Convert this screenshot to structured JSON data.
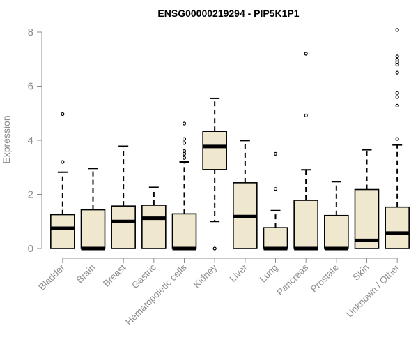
{
  "chart_data": {
    "type": "boxplot",
    "title": "ENSG00000219294 - PIP5K1P1",
    "ylabel": "Expression",
    "ylim": [
      0,
      8.3
    ],
    "yticks": [
      0,
      2,
      4,
      6,
      8
    ],
    "grid": false,
    "colors": {
      "box_fill": "#efe8cf",
      "stroke": "#000000",
      "text": "#8c8c8c"
    },
    "categories": [
      "Bladder",
      "Brain",
      "Breast",
      "Gastric",
      "Hematopoietic cells",
      "Kidney",
      "Liver",
      "Lung",
      "Pancreas",
      "Prostate",
      "Skin",
      "Unknown / Other"
    ],
    "boxes": [
      {
        "q1": 0.0,
        "median": 0.75,
        "q3": 1.25,
        "whisker_low": 0.0,
        "whisker_high": 2.82,
        "outliers": [
          3.2,
          4.97
        ]
      },
      {
        "q1": 0.0,
        "median": 0.0,
        "q3": 1.43,
        "whisker_low": 0.0,
        "whisker_high": 2.96,
        "outliers": []
      },
      {
        "q1": 0.0,
        "median": 1.0,
        "q3": 1.57,
        "whisker_low": 0.0,
        "whisker_high": 3.78,
        "outliers": []
      },
      {
        "q1": 0.0,
        "median": 1.12,
        "q3": 1.6,
        "whisker_low": 0.0,
        "whisker_high": 2.26,
        "outliers": []
      },
      {
        "q1": 0.0,
        "median": 0.0,
        "q3": 1.28,
        "whisker_low": 0.0,
        "whisker_high": 3.2,
        "outliers": [
          3.35,
          3.5,
          3.6,
          3.9,
          4.05,
          4.62
        ]
      },
      {
        "q1": 2.92,
        "median": 3.77,
        "q3": 4.33,
        "whisker_low": 1.0,
        "whisker_high": 5.55,
        "outliers": [
          0.0
        ]
      },
      {
        "q1": 0.0,
        "median": 1.18,
        "q3": 2.43,
        "whisker_low": 0.0,
        "whisker_high": 3.99,
        "outliers": []
      },
      {
        "q1": 0.0,
        "median": 0.0,
        "q3": 0.77,
        "whisker_low": 0.0,
        "whisker_high": 1.4,
        "outliers": [
          2.2,
          3.5
        ]
      },
      {
        "q1": 0.0,
        "median": 0.0,
        "q3": 1.78,
        "whisker_low": 0.0,
        "whisker_high": 2.91,
        "outliers": [
          4.92,
          7.2
        ]
      },
      {
        "q1": 0.0,
        "median": 0.0,
        "q3": 1.22,
        "whisker_low": 0.0,
        "whisker_high": 2.47,
        "outliers": []
      },
      {
        "q1": 0.0,
        "median": 0.3,
        "q3": 2.18,
        "whisker_low": 0.0,
        "whisker_high": 3.65,
        "outliers": []
      },
      {
        "q1": 0.0,
        "median": 0.57,
        "q3": 1.53,
        "whisker_low": 0.0,
        "whisker_high": 3.83,
        "outliers": [
          4.05,
          5.28,
          5.6,
          5.75,
          6.5,
          6.8,
          6.88,
          6.98,
          7.1,
          8.08
        ]
      }
    ]
  }
}
